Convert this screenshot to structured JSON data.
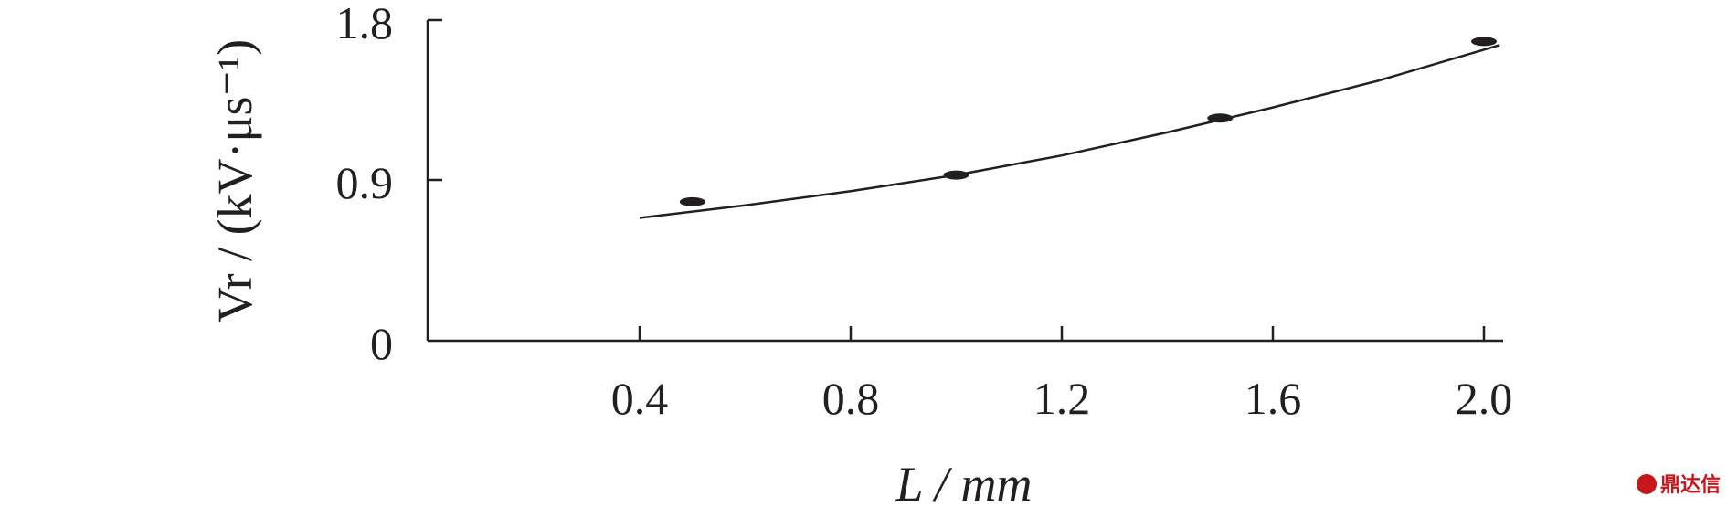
{
  "chart_data": {
    "type": "scatter",
    "title": "",
    "xlabel": "L / mm",
    "ylabel": "Vr / (kV·μs⁻¹)",
    "xlim": [
      0.0,
      2.05
    ],
    "ylim": [
      0,
      1.8
    ],
    "x_ticks": [
      "0.4",
      "0.8",
      "1.2",
      "1.6",
      "2.0"
    ],
    "y_ticks": [
      "0",
      "0.9",
      "1.8"
    ],
    "grid": false,
    "series": [
      {
        "points": [
          {
            "x": 0.5,
            "y": 0.78
          },
          {
            "x": 1.0,
            "y": 0.93
          },
          {
            "x": 1.5,
            "y": 1.25
          },
          {
            "x": 2.0,
            "y": 1.68
          }
        ]
      }
    ],
    "fit_curve": {
      "x": [
        0.4,
        0.6,
        0.8,
        1.0,
        1.2,
        1.4,
        1.6,
        1.8,
        2.03
      ],
      "y": [
        0.69,
        0.76,
        0.84,
        0.93,
        1.04,
        1.17,
        1.31,
        1.46,
        1.66
      ]
    }
  },
  "watermark": {
    "text": "鼎达信"
  }
}
